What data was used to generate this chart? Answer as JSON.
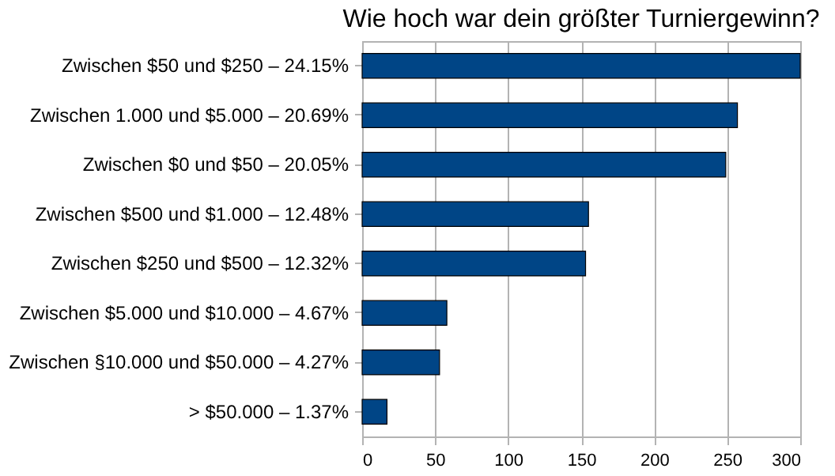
{
  "chart_data": {
    "type": "bar",
    "orientation": "horizontal",
    "title": "Wie hoch war dein größter Turniergewinn?",
    "categories": [
      "Zwischen $50 und $250 – 24.15%",
      "Zwischen 1.000 und $5.000 – 20.69%",
      "Zwischen $0 und $50 – 20.05%",
      "Zwischen $500 und $1.000 – 12.48%",
      "Zwischen $250 und $500 – 12.32%",
      "Zwischen $5.000 und $10.000 – 4.67%",
      "Zwischen §10.000 und $50.000 – 4.27%",
      "> $50.000 – 1.37%"
    ],
    "values": [
      300,
      257,
      249,
      155,
      153,
      58,
      53,
      17
    ],
    "color": "#004586",
    "xlim": [
      0,
      300
    ],
    "xticks": [
      0,
      50,
      100,
      150,
      200,
      250,
      300
    ],
    "grid": "x"
  }
}
